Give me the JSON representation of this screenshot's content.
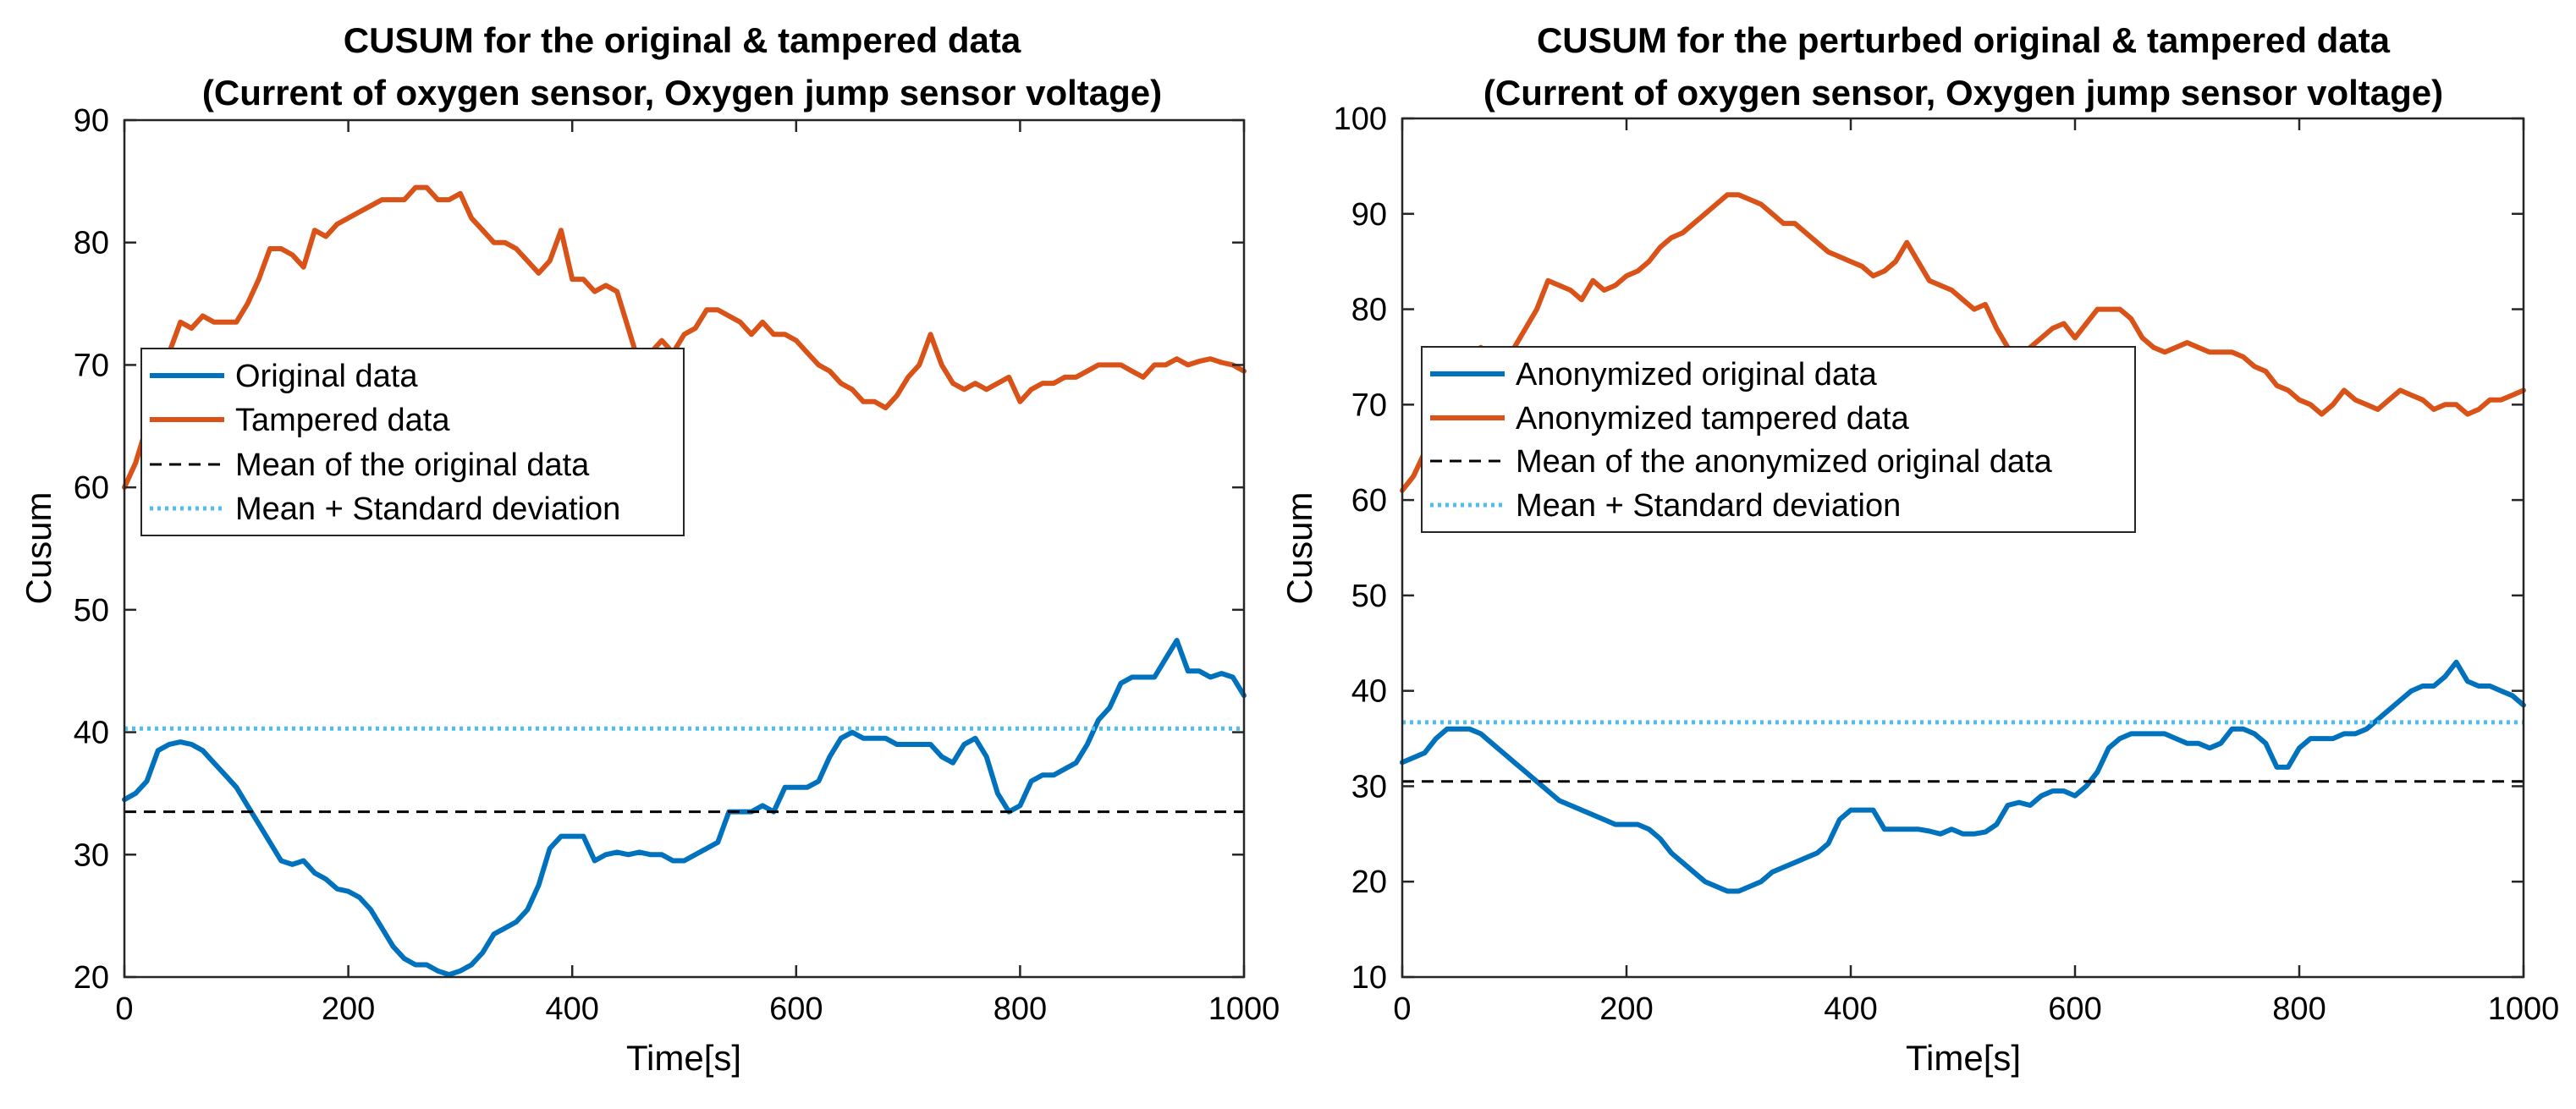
{
  "chart_data": [
    {
      "type": "line",
      "title": [
        "CUSUM for the original & tampered data",
        "(Current of oxygen sensor, Oxygen jump sensor voltage)"
      ],
      "xlabel": "Time[s]",
      "ylabel": "Cusum",
      "xlim": [
        0,
        1000
      ],
      "ylim": [
        20,
        90
      ],
      "xticks": [
        0,
        200,
        400,
        600,
        800,
        1000
      ],
      "yticks": [
        20,
        30,
        40,
        50,
        60,
        70,
        80,
        90
      ],
      "grid": false,
      "legend_position": "upper-left",
      "series": [
        {
          "name": "Original data",
          "color": "#0072BD",
          "style": "solid",
          "x": [
            0,
            10,
            20,
            30,
            40,
            50,
            60,
            70,
            80,
            90,
            100,
            110,
            120,
            130,
            140,
            150,
            160,
            170,
            180,
            190,
            200,
            210,
            220,
            230,
            240,
            250,
            260,
            270,
            280,
            290,
            300,
            310,
            320,
            330,
            340,
            350,
            360,
            370,
            380,
            390,
            400,
            410,
            420,
            430,
            440,
            450,
            460,
            470,
            480,
            490,
            500,
            510,
            520,
            530,
            540,
            550,
            560,
            570,
            580,
            590,
            600,
            610,
            620,
            630,
            640,
            650,
            660,
            670,
            680,
            690,
            700,
            710,
            720,
            730,
            740,
            750,
            760,
            770,
            780,
            790,
            800,
            810,
            820,
            830,
            840,
            850,
            860,
            870,
            880,
            890,
            900,
            910,
            920,
            930,
            940,
            950,
            960,
            970,
            980,
            990,
            1000
          ],
          "y": [
            34.5,
            35,
            36,
            38.5,
            39,
            39.2,
            39,
            38.5,
            37.5,
            36.5,
            35.5,
            34,
            32.5,
            31,
            29.5,
            29.2,
            29.5,
            28.5,
            28,
            27.2,
            27,
            26.5,
            25.5,
            24,
            22.5,
            21.5,
            21,
            21,
            20.5,
            20.2,
            20.5,
            21,
            22,
            23.5,
            24,
            24.5,
            25.5,
            27.5,
            30.5,
            31.5,
            31.5,
            31.5,
            29.5,
            30,
            30.2,
            30,
            30.2,
            30,
            30,
            29.5,
            29.5,
            30,
            30.5,
            31,
            33.5,
            33.5,
            33.5,
            34,
            33.5,
            35.5,
            35.5,
            35.5,
            36,
            38,
            39.5,
            40,
            39.5,
            39.5,
            39.5,
            39,
            39,
            39,
            39,
            38,
            37.5,
            39,
            39.5,
            38,
            35,
            33.5,
            34,
            36,
            36.5,
            36.5,
            37,
            37.5,
            39,
            41,
            42,
            44,
            44.5,
            44.5,
            44.5,
            46,
            47.5,
            45,
            45,
            44.5,
            44.8,
            44.5,
            43
          ]
        },
        {
          "name": "Tampered data",
          "color": "#D95319",
          "style": "solid",
          "x": [
            0,
            10,
            20,
            30,
            40,
            50,
            60,
            70,
            80,
            90,
            100,
            110,
            120,
            130,
            140,
            150,
            160,
            170,
            180,
            190,
            200,
            210,
            220,
            230,
            240,
            250,
            260,
            270,
            280,
            290,
            300,
            310,
            320,
            330,
            340,
            350,
            360,
            370,
            380,
            390,
            400,
            410,
            420,
            430,
            440,
            450,
            460,
            470,
            480,
            490,
            500,
            510,
            520,
            530,
            540,
            550,
            560,
            570,
            580,
            590,
            600,
            610,
            620,
            630,
            640,
            650,
            660,
            670,
            680,
            690,
            700,
            710,
            720,
            730,
            740,
            750,
            760,
            770,
            780,
            790,
            800,
            810,
            820,
            830,
            840,
            850,
            860,
            870,
            880,
            890,
            900,
            910,
            920,
            930,
            940,
            950,
            960,
            970,
            980,
            990,
            1000
          ],
          "y": [
            60,
            62,
            65,
            68,
            71,
            73.5,
            73,
            74,
            73.5,
            73.5,
            73.5,
            75,
            77,
            79.5,
            79.5,
            79,
            78,
            81,
            80.5,
            81.5,
            82,
            82.5,
            83,
            83.5,
            83.5,
            83.5,
            84.5,
            84.5,
            83.5,
            83.5,
            84,
            82,
            81,
            80,
            80,
            79.5,
            78.5,
            77.5,
            78.5,
            81,
            77,
            77,
            76,
            76.5,
            76,
            73,
            70,
            71,
            72,
            71,
            72.5,
            73,
            74.5,
            74.5,
            74,
            73.5,
            72.5,
            73.5,
            72.5,
            72.5,
            72,
            71,
            70,
            69.5,
            68.5,
            68,
            67,
            67,
            66.5,
            67.5,
            69,
            70,
            72.5,
            70,
            68.5,
            68,
            68.5,
            68,
            68.5,
            69,
            67,
            68,
            68.5,
            68.5,
            69,
            69,
            69.5,
            70,
            70,
            70,
            69.5,
            69,
            70,
            70,
            70.5,
            70,
            70.3,
            70.5,
            70.2,
            70,
            69.5
          ]
        },
        {
          "name": "Mean of the original data",
          "color": "#000000",
          "style": "dashed",
          "value": 33.5
        },
        {
          "name": "Mean + Standard deviation",
          "color": "#4DBEEE",
          "style": "dotted",
          "value": 40.3
        }
      ]
    },
    {
      "type": "line",
      "title": [
        "CUSUM for the perturbed original & tampered data",
        "(Current of oxygen sensor, Oxygen jump sensor voltage)"
      ],
      "xlabel": "Time[s]",
      "ylabel": "Cusum",
      "xlim": [
        0,
        1000
      ],
      "ylim": [
        10,
        100
      ],
      "xticks": [
        0,
        200,
        400,
        600,
        800,
        1000
      ],
      "yticks": [
        10,
        20,
        30,
        40,
        50,
        60,
        70,
        80,
        90,
        100
      ],
      "grid": false,
      "legend_position": "upper-left",
      "series": [
        {
          "name": "Anonymized original data",
          "color": "#0072BD",
          "style": "solid",
          "x": [
            0,
            10,
            20,
            30,
            40,
            50,
            60,
            70,
            80,
            90,
            100,
            110,
            120,
            130,
            140,
            150,
            160,
            170,
            180,
            190,
            200,
            210,
            220,
            230,
            240,
            250,
            260,
            270,
            280,
            290,
            300,
            310,
            320,
            330,
            340,
            350,
            360,
            370,
            380,
            390,
            400,
            410,
            420,
            430,
            440,
            450,
            460,
            470,
            480,
            490,
            500,
            510,
            520,
            530,
            540,
            550,
            560,
            570,
            580,
            590,
            600,
            610,
            620,
            630,
            640,
            650,
            660,
            670,
            680,
            690,
            700,
            710,
            720,
            730,
            740,
            750,
            760,
            770,
            780,
            790,
            800,
            810,
            820,
            830,
            840,
            850,
            860,
            870,
            880,
            890,
            900,
            910,
            920,
            930,
            940,
            950,
            960,
            970,
            980,
            990,
            1000
          ],
          "y": [
            32.5,
            33,
            33.5,
            35,
            36,
            36,
            36,
            35.5,
            34.5,
            33.5,
            32.5,
            31.5,
            30.5,
            29.5,
            28.5,
            28,
            27.5,
            27,
            26.5,
            26,
            26,
            26,
            25.5,
            24.5,
            23,
            22,
            21,
            20,
            19.5,
            19,
            19,
            19.5,
            20,
            21,
            21.5,
            22,
            22.5,
            23,
            24,
            26.5,
            27.5,
            27.5,
            27.5,
            25.5,
            25.5,
            25.5,
            25.5,
            25.3,
            25,
            25.5,
            25,
            25,
            25.2,
            26,
            28,
            28.3,
            28,
            29,
            29.5,
            29.5,
            29,
            30,
            31.5,
            34,
            35,
            35.5,
            35.5,
            35.5,
            35.5,
            35,
            34.5,
            34.5,
            34,
            34.5,
            36,
            36,
            35.5,
            34.5,
            32,
            32,
            34,
            35,
            35,
            35,
            35.5,
            35.5,
            36,
            37,
            38,
            39,
            40,
            40.5,
            40.5,
            41.5,
            43,
            41,
            40.5,
            40.5,
            40,
            39.5,
            38.5
          ]
        },
        {
          "name": "Anonymized tampered data",
          "color": "#D95319",
          "style": "solid",
          "x": [
            0,
            10,
            20,
            30,
            40,
            50,
            60,
            70,
            80,
            90,
            100,
            110,
            120,
            130,
            140,
            150,
            160,
            170,
            180,
            190,
            200,
            210,
            220,
            230,
            240,
            250,
            260,
            270,
            280,
            290,
            300,
            310,
            320,
            330,
            340,
            350,
            360,
            370,
            380,
            390,
            400,
            410,
            420,
            430,
            440,
            450,
            460,
            470,
            480,
            490,
            500,
            510,
            520,
            530,
            540,
            550,
            560,
            570,
            580,
            590,
            600,
            610,
            620,
            630,
            640,
            650,
            660,
            670,
            680,
            690,
            700,
            710,
            720,
            730,
            740,
            750,
            760,
            770,
            780,
            790,
            800,
            810,
            820,
            830,
            840,
            850,
            860,
            870,
            880,
            890,
            900,
            910,
            920,
            930,
            940,
            950,
            960,
            970,
            980,
            990,
            1000
          ],
          "y": [
            61,
            62.5,
            65,
            68,
            71,
            74,
            75,
            76,
            75,
            75,
            76,
            78,
            80,
            83,
            82.5,
            82,
            81,
            83,
            82,
            82.5,
            83.5,
            84,
            85,
            86.5,
            87.5,
            88,
            89,
            90,
            91,
            92,
            92,
            91.5,
            91,
            90,
            89,
            89,
            88,
            87,
            86,
            85.5,
            85,
            84.5,
            83.5,
            84,
            85,
            87,
            85,
            83,
            82.5,
            82,
            81,
            80,
            80.5,
            78,
            76,
            75,
            76,
            77,
            78,
            78.5,
            77,
            78.5,
            80,
            80,
            80,
            79,
            77,
            76,
            75.5,
            76,
            76.5,
            76,
            75.5,
            75.5,
            75.5,
            75,
            74,
            73.5,
            72,
            71.5,
            70.5,
            70,
            69,
            70,
            71.5,
            70.5,
            70,
            69.5,
            70.5,
            71.5,
            71,
            70.5,
            69.5,
            70,
            70,
            69,
            69.5,
            70.5,
            70.5,
            71,
            71.5
          ]
        },
        {
          "name": "Mean of the anonymized original data",
          "color": "#000000",
          "style": "dashed",
          "value": 30.5
        },
        {
          "name": "Mean + Standard deviation",
          "color": "#4DBEEE",
          "style": "dotted",
          "value": 36.7
        }
      ]
    }
  ]
}
